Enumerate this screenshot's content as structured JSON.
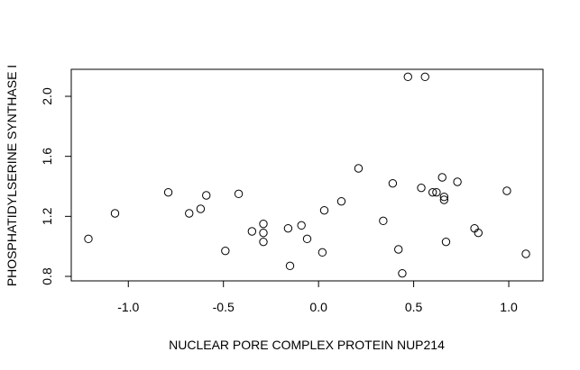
{
  "chart_data": {
    "type": "scatter",
    "title": "",
    "xlabel": "NUCLEAR PORE COMPLEX PROTEIN NUP214",
    "ylabel": "PHOSPHATIDYLSERINE SYNTHASE I",
    "xlim": [
      -1.3,
      1.18
    ],
    "ylim": [
      0.77,
      2.18
    ],
    "x_ticks": [
      -1.0,
      -0.5,
      0.0,
      0.5,
      1.0
    ],
    "x_tick_labels": [
      "-1.0",
      "-0.5",
      "0.0",
      "0.5",
      "1.0"
    ],
    "y_ticks": [
      0.8,
      1.2,
      1.6,
      2.0
    ],
    "y_tick_labels": [
      "0.8",
      "1.2",
      "1.6",
      "2.0"
    ],
    "grid": false,
    "marker": "open-circle",
    "points": [
      {
        "x": -1.21,
        "y": 1.05
      },
      {
        "x": -1.07,
        "y": 1.22
      },
      {
        "x": -0.79,
        "y": 1.36
      },
      {
        "x": -0.68,
        "y": 1.22
      },
      {
        "x": -0.62,
        "y": 1.25
      },
      {
        "x": -0.59,
        "y": 1.34
      },
      {
        "x": -0.49,
        "y": 0.97
      },
      {
        "x": -0.42,
        "y": 1.35
      },
      {
        "x": -0.35,
        "y": 1.1
      },
      {
        "x": -0.29,
        "y": 1.15
      },
      {
        "x": -0.29,
        "y": 1.09
      },
      {
        "x": -0.29,
        "y": 1.03
      },
      {
        "x": -0.16,
        "y": 1.12
      },
      {
        "x": -0.15,
        "y": 0.87
      },
      {
        "x": -0.09,
        "y": 1.14
      },
      {
        "x": -0.06,
        "y": 1.05
      },
      {
        "x": 0.02,
        "y": 0.96
      },
      {
        "x": 0.03,
        "y": 1.24
      },
      {
        "x": 0.12,
        "y": 1.3
      },
      {
        "x": 0.21,
        "y": 1.52
      },
      {
        "x": 0.34,
        "y": 1.17
      },
      {
        "x": 0.39,
        "y": 1.42
      },
      {
        "x": 0.42,
        "y": 0.98
      },
      {
        "x": 0.44,
        "y": 0.82
      },
      {
        "x": 0.47,
        "y": 2.13
      },
      {
        "x": 0.54,
        "y": 1.39
      },
      {
        "x": 0.56,
        "y": 2.13
      },
      {
        "x": 0.6,
        "y": 1.36
      },
      {
        "x": 0.62,
        "y": 1.36
      },
      {
        "x": 0.65,
        "y": 1.46
      },
      {
        "x": 0.66,
        "y": 1.33
      },
      {
        "x": 0.66,
        "y": 1.31
      },
      {
        "x": 0.67,
        "y": 1.03
      },
      {
        "x": 0.73,
        "y": 1.43
      },
      {
        "x": 0.82,
        "y": 1.12
      },
      {
        "x": 0.84,
        "y": 1.09
      },
      {
        "x": 0.99,
        "y": 1.37
      },
      {
        "x": 1.09,
        "y": 0.95
      }
    ]
  }
}
